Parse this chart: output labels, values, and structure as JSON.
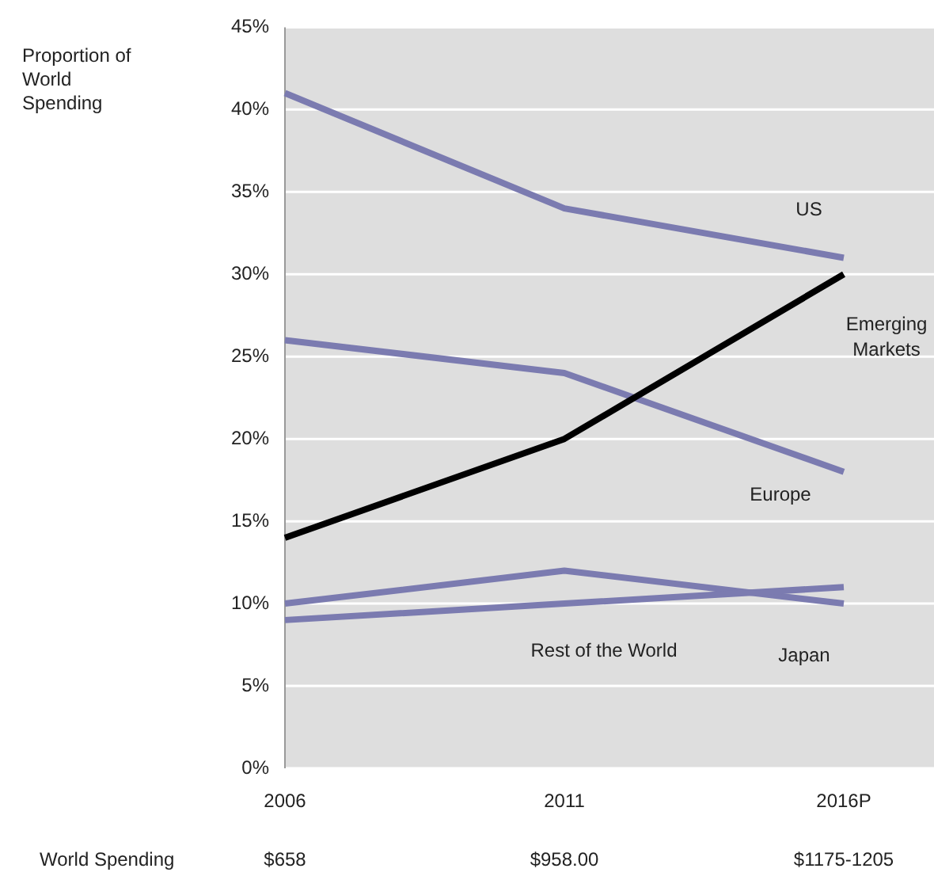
{
  "chart_data": {
    "type": "line",
    "categories": [
      "2006",
      "2011",
      "2016P"
    ],
    "series": [
      {
        "name": "US",
        "color": "#7b7bb0",
        "values": [
          41,
          34,
          31
        ]
      },
      {
        "name": "Emerging Markets",
        "color": "#000000",
        "values": [
          14,
          20,
          30
        ]
      },
      {
        "name": "Europe",
        "color": "#7b7bb0",
        "values": [
          26,
          24,
          18
        ]
      },
      {
        "name": "Rest of the World",
        "color": "#7b7bb0",
        "values": [
          9,
          10,
          11
        ]
      },
      {
        "name": "Japan",
        "color": "#7b7bb0",
        "values": [
          10,
          12,
          10
        ]
      }
    ],
    "ylim": [
      0,
      45
    ],
    "yticks": [
      {
        "value": 0,
        "label": "0%"
      },
      {
        "value": 5,
        "label": "5%"
      },
      {
        "value": 10,
        "label": "10%"
      },
      {
        "value": 15,
        "label": "15%"
      },
      {
        "value": 20,
        "label": "20%"
      },
      {
        "value": 25,
        "label": "25%"
      },
      {
        "value": 30,
        "label": "30%"
      },
      {
        "value": 35,
        "label": "35%"
      },
      {
        "value": 40,
        "label": "40%"
      },
      {
        "value": 45,
        "label": "45%"
      }
    ],
    "grid": "y",
    "legend": false,
    "marker": "none",
    "line_style": "solid",
    "annotations": [
      "Proportion of World Spending",
      "World Spending",
      "$658",
      "$958.00",
      "$1175-1205"
    ]
  }
}
